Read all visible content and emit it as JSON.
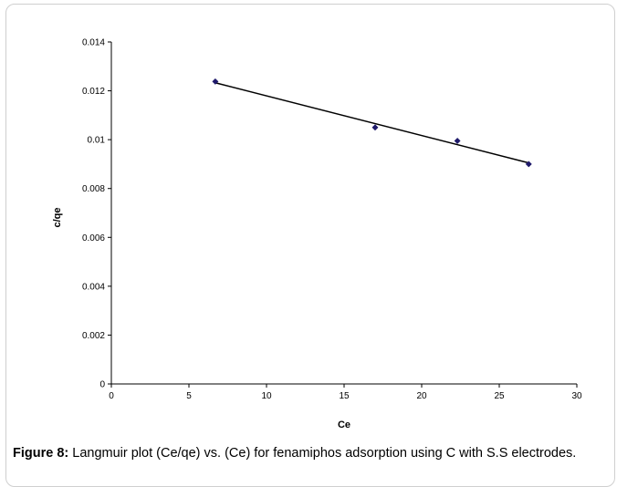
{
  "figure": {
    "caption_label": "Figure 8:",
    "caption_text": " Langmuir plot (Ce/qe) vs. (Ce) for fenamiphos adsorption using C with S.S electrodes."
  },
  "chart_data": {
    "type": "scatter",
    "xlabel": "Ce",
    "ylabel": "c/qe",
    "xlim": [
      0,
      30
    ],
    "ylim": [
      0,
      0.014
    ],
    "xticks": [
      0,
      5,
      10,
      15,
      20,
      25,
      30
    ],
    "yticks": [
      0,
      0.002,
      0.004,
      0.006,
      0.008,
      0.01,
      0.012,
      0.014
    ],
    "xtick_labels": [
      "0",
      "5",
      "10",
      "15",
      "20",
      "25",
      "30"
    ],
    "ytick_labels": [
      "0",
      "0.002",
      "0.004",
      "0.006",
      "0.008",
      "0.01",
      "0.012",
      "0.014"
    ],
    "grid": false,
    "series": [
      {
        "marker_color": "#1f1a6b",
        "x": [
          6.7,
          17.0,
          22.3,
          26.9
        ],
        "y": [
          0.01238,
          0.0105,
          0.00995,
          0.009
        ]
      }
    ],
    "trendline": {
      "x": [
        6.7,
        26.9
      ],
      "y": [
        0.01233,
        0.00905
      ],
      "color": "#000000"
    }
  }
}
